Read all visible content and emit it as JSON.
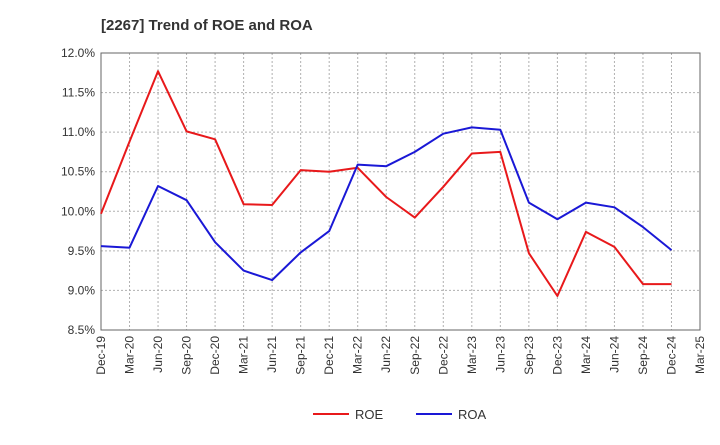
{
  "chart_data": {
    "type": "line",
    "title": "[2267]  Trend of ROE and ROA",
    "xlabel": "",
    "ylabel": "",
    "x": [
      "Dec-19",
      "Mar-20",
      "Jun-20",
      "Sep-20",
      "Dec-20",
      "Mar-21",
      "Jun-21",
      "Sep-21",
      "Dec-21",
      "Mar-22",
      "Jun-22",
      "Sep-22",
      "Dec-22",
      "Mar-23",
      "Jun-23",
      "Sep-23",
      "Dec-23",
      "Mar-24",
      "Jun-24",
      "Sep-24",
      "Dec-24",
      "Mar-25"
    ],
    "ylim": [
      8.5,
      12.0
    ],
    "yticks": [
      8.5,
      9.0,
      9.5,
      10.0,
      10.5,
      11.0,
      11.5,
      12.0
    ],
    "ytick_labels": [
      "8.5%",
      "9.0%",
      "9.5%",
      "10.0%",
      "10.5%",
      "11.0%",
      "11.5%",
      "12.0%"
    ],
    "grid": true,
    "legend_position": "bottom-center",
    "series": [
      {
        "name": "ROE",
        "color": "#e8191b",
        "values": [
          9.97,
          10.88,
          11.77,
          11.01,
          10.91,
          10.09,
          10.08,
          10.52,
          10.5,
          10.55,
          10.18,
          9.92,
          10.31,
          10.73,
          10.75,
          9.47,
          8.93,
          9.74,
          9.55,
          9.08,
          9.08,
          null
        ]
      },
      {
        "name": "ROA",
        "color": "#1a18d6",
        "values": [
          9.56,
          9.54,
          10.32,
          10.14,
          9.61,
          9.25,
          9.13,
          9.48,
          9.75,
          10.59,
          10.57,
          10.75,
          10.98,
          11.06,
          11.03,
          10.11,
          9.9,
          10.11,
          10.05,
          9.8,
          9.51,
          null
        ]
      }
    ]
  }
}
